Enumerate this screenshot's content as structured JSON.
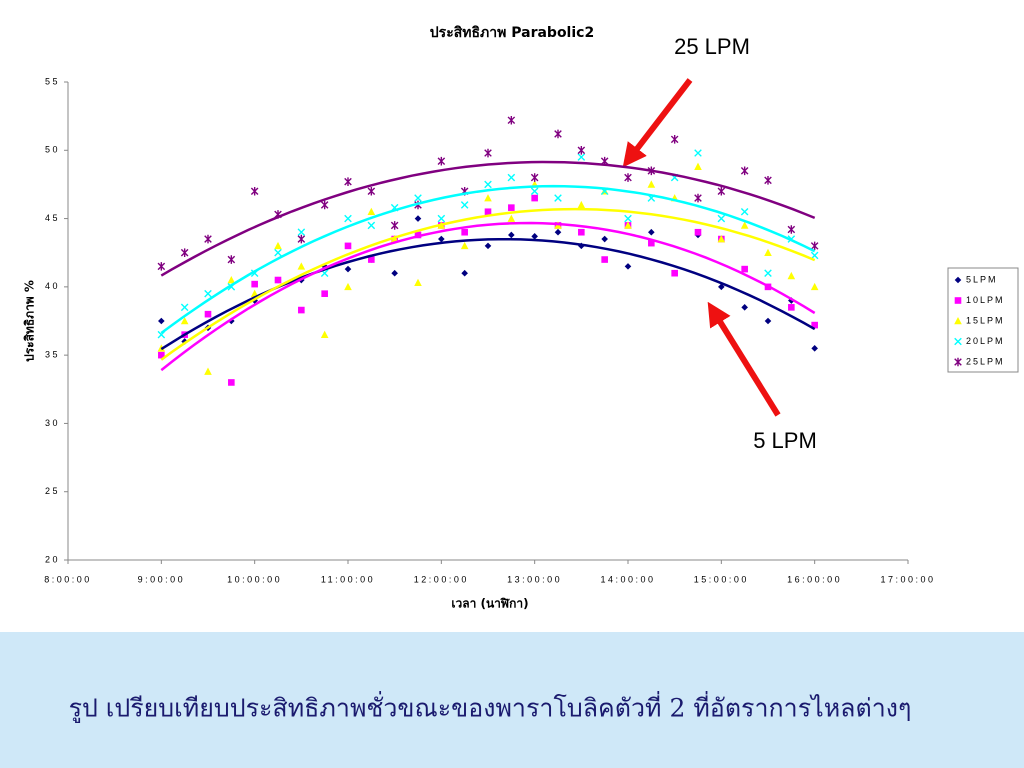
{
  "chart_data": {
    "type": "scatter",
    "title": "ประสิทธิภาพ Parabolic2",
    "x_label": "เวลา (นาฬิกา)",
    "y_label": "ประสิทธิภาพ %",
    "x": [
      9,
      9.25,
      9.5,
      9.75,
      10,
      10.25,
      10.5,
      10.75,
      11,
      11.25,
      11.5,
      11.75,
      12,
      12.25,
      12.5,
      12.75,
      13,
      13.25,
      13.5,
      13.75,
      14,
      14.25,
      14.5,
      14.75,
      15,
      15.25,
      15.5,
      15.75,
      16
    ],
    "series": [
      {
        "name": "5LPM",
        "color": "#000080",
        "marker": "diamond",
        "values": [
          37.5,
          36,
          37,
          37.5,
          39,
          40.5,
          40.5,
          41.5,
          41.3,
          42,
          41,
          45,
          43.5,
          41,
          43,
          43.8,
          43.7,
          44,
          43,
          43.5,
          41.5,
          44,
          41,
          43.8,
          40,
          38.5,
          37.5,
          39,
          35.5
        ]
      },
      {
        "name": "10LPM",
        "color": "#ff00ff",
        "marker": "square",
        "values": [
          35,
          36.5,
          38,
          33,
          40.2,
          40.5,
          38.3,
          39.5,
          43,
          42,
          43.5,
          43.8,
          44.5,
          44,
          45.5,
          45.8,
          46.5,
          44.5,
          44,
          42,
          44.5,
          43.2,
          41,
          44,
          43.5,
          41.3,
          40,
          38.5,
          37.2
        ]
      },
      {
        "name": "15LPM",
        "color": "#ffff00",
        "marker": "triangle",
        "values": [
          35.5,
          37.5,
          33.8,
          40.5,
          39.5,
          43,
          41.5,
          36.5,
          40,
          45.5,
          43.5,
          40.3,
          44.5,
          43,
          46.5,
          45,
          47.5,
          44.5,
          46,
          47,
          44.5,
          47.5,
          46.5,
          48.8,
          43.5,
          44.5,
          42.5,
          40.8,
          40
        ]
      },
      {
        "name": "20LPM",
        "color": "#00ffff",
        "marker": "x",
        "values": [
          36.5,
          38.5,
          39.5,
          40,
          41,
          42.5,
          44,
          41,
          45,
          44.5,
          45.8,
          46.5,
          45,
          46,
          47.5,
          48,
          47,
          46.5,
          49.5,
          47,
          45,
          46.5,
          48,
          49.8,
          45,
          45.5,
          41,
          43.5,
          42.3
        ]
      },
      {
        "name": "25LPM",
        "color": "#800080",
        "marker": "asterisk",
        "values": [
          41.5,
          42.5,
          43.5,
          42,
          47,
          45.3,
          43.5,
          46,
          47.7,
          47,
          44.5,
          46,
          49.2,
          47,
          49.8,
          52.2,
          48,
          51.2,
          50,
          49.2,
          48,
          48.5,
          50.8,
          46.5,
          47,
          48.5,
          47.8,
          44.2,
          43
        ]
      }
    ],
    "trendline": "polynomial",
    "xlim": [
      8,
      17
    ],
    "xticks": [
      {
        "value": 8,
        "label": "8:00:00"
      },
      {
        "value": 9,
        "label": "9:00:00"
      },
      {
        "value": 10,
        "label": "10:00:00"
      },
      {
        "value": 11,
        "label": "11:00:00"
      },
      {
        "value": 12,
        "label": "12:00:00"
      },
      {
        "value": 13,
        "label": "13:00:00"
      },
      {
        "value": 14,
        "label": "14:00:00"
      },
      {
        "value": 15,
        "label": "15:00:00"
      },
      {
        "value": 16,
        "label": "16:00:00"
      },
      {
        "value": 17,
        "label": "17:00:00"
      }
    ],
    "ylim": [
      20,
      55
    ],
    "yticks": [
      20,
      25,
      30,
      35,
      40,
      45,
      50,
      55
    ],
    "grid": false,
    "legend": "right",
    "annotations": [
      "25 LPM",
      "5 LPM"
    ]
  },
  "caption": "รูป เปรียบเทียบประสิทธิภาพชั่วขณะของพาราโบลิคตัวที่ 2 ที่อัตราการไหลต่างๆ"
}
